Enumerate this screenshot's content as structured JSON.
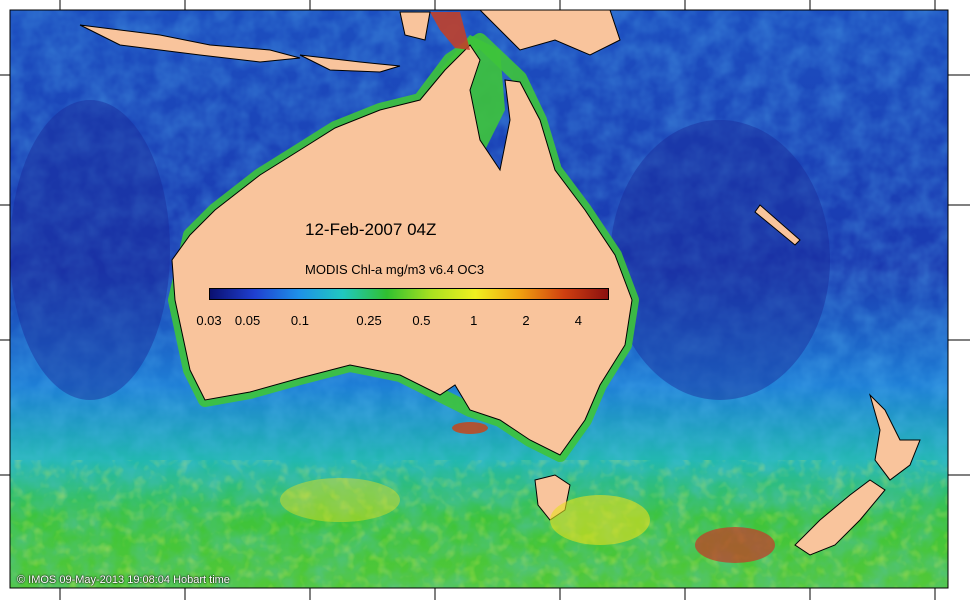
{
  "map": {
    "date_label": "12-Feb-2007 04Z",
    "scale_title": "MODIS Chl-a mg/m3 v6.4 OC3",
    "scale_ticks": [
      "0.03",
      "0.05",
      "0.1",
      "0.25",
      "0.5",
      "1",
      "2",
      "4"
    ],
    "credit": "© IMOS 09-May-2013 19:08:04 Hobart time",
    "colors": {
      "land": "#f9c49c",
      "ocean_low": "#1a2fa8",
      "ocean_mid": "#1f7fd6",
      "ocean_green": "#3ec43a",
      "ocean_high": "#e8e020",
      "max": "#8a1a10"
    },
    "colorbar_stops": [
      "#0a1070",
      "#1f3fd0",
      "#1e90e8",
      "#20c8c0",
      "#30c030",
      "#a8e020",
      "#f0f020",
      "#f0a010",
      "#d04010",
      "#8a1010"
    ]
  }
}
